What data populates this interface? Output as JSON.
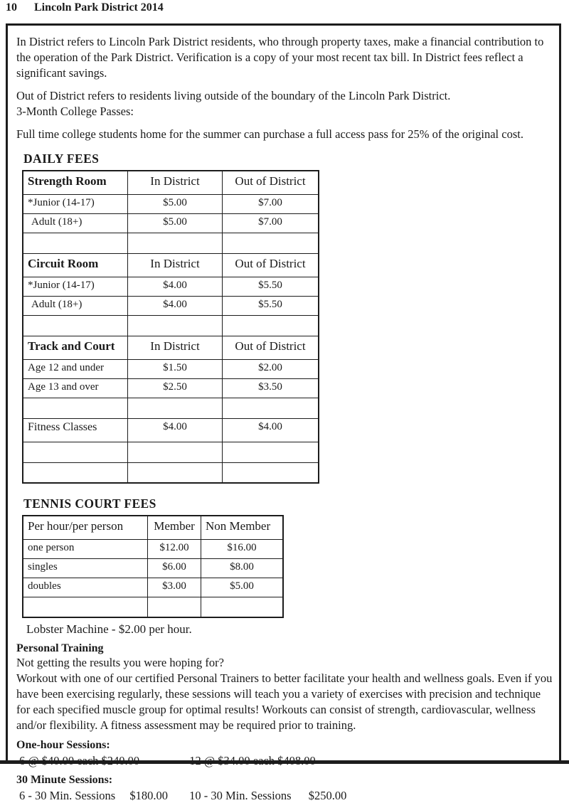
{
  "page_header": {
    "number": "10",
    "title": "Lincoln Park District 2014"
  },
  "intro": {
    "in_district": "In District refers to Lincoln Park District residents, who through property taxes, make a financial contribution to the operation of the Park District.  Verification is a copy of your most recent tax bill. In District fees reflect a significant savings.",
    "out_of_district": "Out of District refers to residents living outside of the boundary of the Lincoln Park District.",
    "college_passes": "3-Month College Passes:",
    "college_note": "Full time college students home for the summer can purchase a full access pass for 25% of the original cost."
  },
  "daily_fees": {
    "heading": "DAILY FEES",
    "rows": [
      {
        "type": "header",
        "c0": "Strength Room",
        "c1": "In District",
        "c2": "Out of District"
      },
      {
        "type": "data",
        "c0": "*Junior (14-17)",
        "c1": "$5.00",
        "c2": "$7.00"
      },
      {
        "type": "data",
        "c0": "Adult (18+)",
        "c1": "$5.00",
        "c2": "$7.00"
      },
      {
        "type": "empty",
        "c0": "",
        "c1": "",
        "c2": ""
      },
      {
        "type": "header",
        "c0": "Circuit Room",
        "c1": "In District",
        "c2": "Out of District"
      },
      {
        "type": "data",
        "c0": "*Junior (14-17)",
        "c1": "$4.00",
        "c2": "$5.50"
      },
      {
        "type": "data",
        "c0": "Adult (18+)",
        "c1": "$4.00",
        "c2": "$5.50"
      },
      {
        "type": "empty",
        "c0": "",
        "c1": "",
        "c2": ""
      },
      {
        "type": "header",
        "c0": "Track and Court",
        "c1": "In District",
        "c2": "Out of District"
      },
      {
        "type": "data",
        "c0": "Age 12 and under",
        "c1": "$1.50",
        "c2": "$2.00"
      },
      {
        "type": "data",
        "c0": "Age 13 and over",
        "c1": "$2.50",
        "c2": "$3.50"
      },
      {
        "type": "empty",
        "c0": "",
        "c1": "",
        "c2": ""
      },
      {
        "type": "data",
        "c0": "Fitness Classes",
        "c1": "$4.00",
        "c2": "$4.00"
      },
      {
        "type": "empty",
        "c0": "",
        "c1": "",
        "c2": ""
      },
      {
        "type": "empty",
        "c0": "",
        "c1": "",
        "c2": ""
      }
    ]
  },
  "tennis_fees": {
    "heading": "TENNIS COURT FEES",
    "rows": [
      {
        "type": "header",
        "c0": "Per hour/per person",
        "c1": "Member",
        "c2": "Non Member"
      },
      {
        "type": "data",
        "c0": "one person",
        "c1": "$12.00",
        "c2": "$16.00"
      },
      {
        "type": "data",
        "c0": "singles",
        "c1": "$6.00",
        "c2": "$8.00"
      },
      {
        "type": "data",
        "c0": "doubles",
        "c1": "$3.00",
        "c2": "$5.00"
      },
      {
        "type": "empty",
        "c0": "",
        "c1": "",
        "c2": ""
      }
    ]
  },
  "lobster_note": "Lobster Machine - $2.00 per hour.",
  "personal_training": {
    "heading": "Personal Training",
    "line1": "Not getting the results you were hoping for?",
    "body": "Workout with one of our certified Personal Trainers to better facilitate your health and wellness goals.  Even if you have been exercising regularly, these sessions will teach you a variety of exercises with precision and technique for each specified muscle group for optimal results!  Workouts can consist of strength, cardiovascular, wellness and/or flexibility.  A fitness assessment may be required prior to training."
  },
  "one_hour_sessions": {
    "heading": "One-hour Sessions:",
    "item1": "6 @ $40.00 each $240.00",
    "item2": "12 @ $34.00 each $408.00"
  },
  "thirty_minute_sessions": {
    "heading": "30 Minute Sessions:",
    "item1_label": "6 - 30 Min. Sessions",
    "item1_price": "$180.00",
    "item2_label": "10 - 30 Min. Sessions",
    "item2_price": "$250.00"
  },
  "colors": {
    "text": "#1a1a1a",
    "border": "#1c1c1c",
    "background": "#ffffff"
  }
}
